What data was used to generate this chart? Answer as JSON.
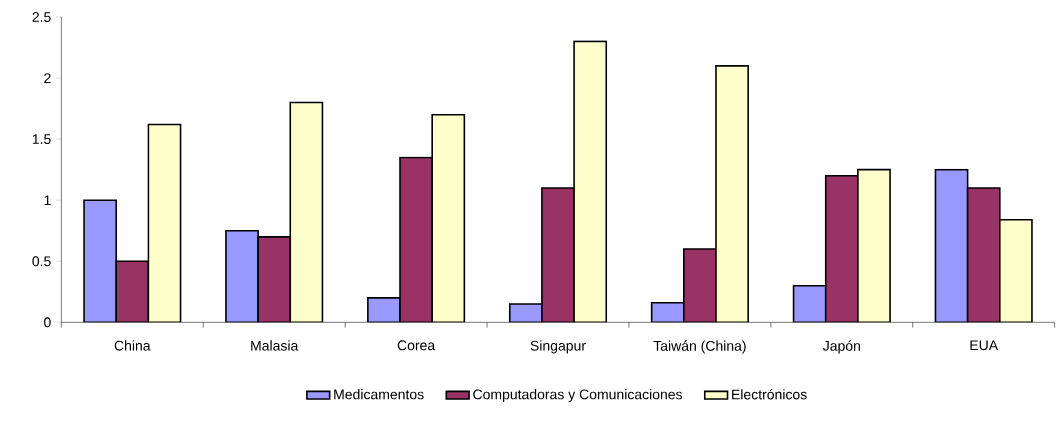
{
  "chart_data": {
    "type": "bar",
    "categories": [
      "China",
      "Malasia",
      "Corea",
      "Singapur",
      "Taiwán (China)",
      "Japón",
      "EUA"
    ],
    "series": [
      {
        "name": "Medicamentos",
        "color": "#9999ff",
        "values": [
          1.0,
          0.75,
          0.2,
          0.15,
          0.16,
          0.3,
          1.25
        ]
      },
      {
        "name": "Computadoras  y Comunicaciones",
        "color": "#993366",
        "values": [
          0.5,
          0.7,
          1.35,
          1.1,
          0.6,
          1.2,
          1.1
        ]
      },
      {
        "name": "Electrónicos",
        "color": "#ffffcc",
        "values": [
          1.62,
          1.8,
          1.7,
          2.3,
          2.1,
          1.25,
          0.84
        ]
      }
    ],
    "ylim": [
      0,
      2.5
    ],
    "yticks": [
      0,
      0.5,
      1,
      1.5,
      2,
      2.5
    ],
    "legend": "bottom",
    "grid": false
  }
}
